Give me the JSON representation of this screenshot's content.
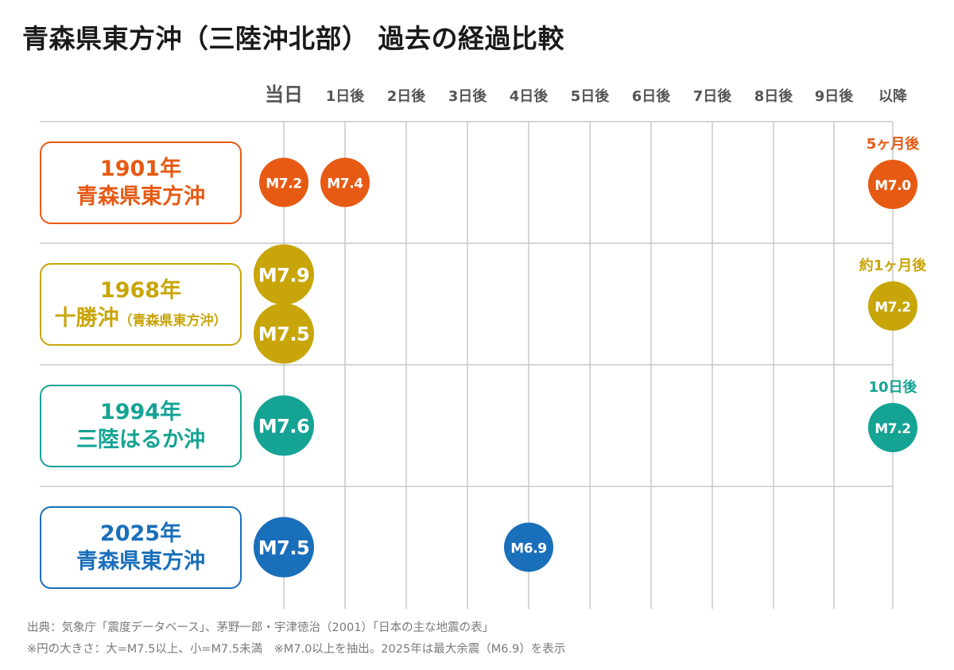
{
  "title": "青森県東方沖（三陸沖北部） 過去の経過比較",
  "chart_data": {
    "type": "scatter",
    "columns": [
      "当日",
      "1日後",
      "2日後",
      "3日後",
      "4日後",
      "5日後",
      "6日後",
      "7日後",
      "8日後",
      "9日後",
      "以降"
    ],
    "rows": [
      {
        "year": "1901年",
        "place": "青森県東方沖",
        "place_sub": "",
        "color": "#e65a14",
        "events": [
          {
            "day": 0,
            "label": "M7.2",
            "magnitude": 7.2,
            "large": false
          },
          {
            "day": 1,
            "label": "M7.4",
            "magnitude": 7.4,
            "large": false
          },
          {
            "day": 10,
            "label": "M7.0",
            "magnitude": 7.0,
            "large": false,
            "note": "5ヶ月後"
          }
        ]
      },
      {
        "year": "1968年",
        "place": "十勝沖",
        "place_sub": "（青森県東方沖）",
        "color": "#c8a508",
        "events": [
          {
            "day": 0,
            "label": "M7.9",
            "magnitude": 7.9,
            "large": true
          },
          {
            "day": 0,
            "label": "M7.5",
            "magnitude": 7.5,
            "large": true
          },
          {
            "day": 10,
            "label": "M7.2",
            "magnitude": 7.2,
            "large": false,
            "note": "約1ヶ月後"
          }
        ]
      },
      {
        "year": "1994年",
        "place": "三陸はるか沖",
        "place_sub": "",
        "color": "#15a394",
        "events": [
          {
            "day": 0,
            "label": "M7.6",
            "magnitude": 7.6,
            "large": true
          },
          {
            "day": 10,
            "label": "M7.2",
            "magnitude": 7.2,
            "large": false,
            "note": "10日後"
          }
        ]
      },
      {
        "year": "2025年",
        "place": "青森県東方沖",
        "place_sub": "",
        "color": "#1a6fba",
        "events": [
          {
            "day": 0,
            "label": "M7.5",
            "magnitude": 7.5,
            "large": true
          },
          {
            "day": 4,
            "label": "M6.9",
            "magnitude": 6.9,
            "large": false
          }
        ]
      }
    ]
  },
  "source": "出典：気象庁「震度データベース」、茅野一郎・宇津徳治（2001）「日本の主な地震の表」",
  "note": "※円の大きさ：大=M7.5以上、小=M7.5未満　※M7.0以上を抽出。2025年は最大余震（M6.9）を表示"
}
